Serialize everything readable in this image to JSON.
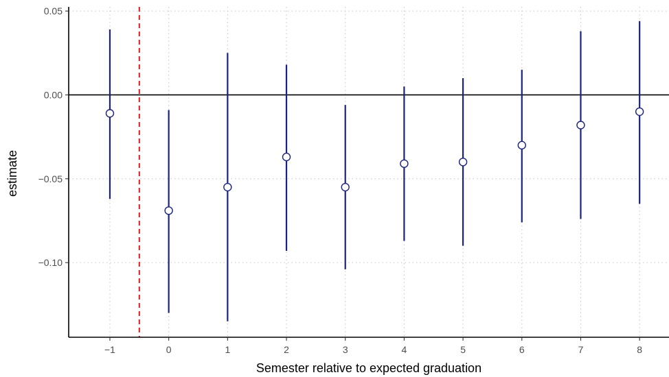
{
  "chart_data": {
    "type": "scatter",
    "xlabel": "Semester relative to expected graduation",
    "ylabel": "estimate",
    "xlim": [
      -1.7,
      8.5
    ],
    "ylim": [
      -0.1445,
      0.0525
    ],
    "x_ticks": [
      -1,
      0,
      1,
      2,
      3,
      4,
      5,
      6,
      7,
      8
    ],
    "x_tick_labels": [
      "−1",
      "0",
      "1",
      "2",
      "3",
      "4",
      "5",
      "6",
      "7",
      "8"
    ],
    "y_ticks": [
      0.05,
      0.0,
      -0.05,
      -0.1
    ],
    "y_tick_labels": [
      "0.05",
      "0.00",
      "−0.05",
      "−0.10"
    ],
    "grid": true,
    "zero_line": 0.0,
    "reference_vline": -0.5,
    "series": [
      {
        "x": [
          -1,
          0,
          1,
          2,
          3,
          4,
          5,
          6,
          7,
          8
        ],
        "estimate": [
          -0.011,
          -0.069,
          -0.055,
          -0.037,
          -0.055,
          -0.041,
          -0.04,
          -0.03,
          -0.018,
          -0.01
        ],
        "ci_low": [
          -0.062,
          -0.13,
          -0.135,
          -0.093,
          -0.104,
          -0.087,
          -0.09,
          -0.076,
          -0.074,
          -0.065
        ],
        "ci_high": [
          0.039,
          -0.009,
          0.025,
          0.018,
          -0.006,
          0.005,
          0.01,
          0.015,
          0.038,
          0.044
        ]
      }
    ],
    "colors": {
      "point": "#1a237e",
      "interval": "#1a237e",
      "reference_line": "#e31a1c",
      "zero_line": "#000000",
      "grid": "#c8c8c8"
    }
  }
}
